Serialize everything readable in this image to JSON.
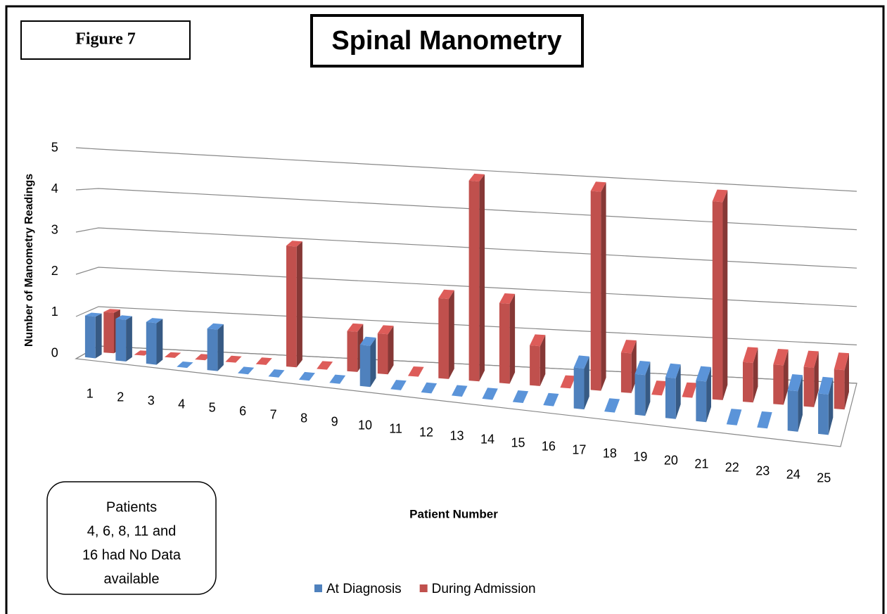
{
  "chart_data": {
    "type": "bar3d",
    "figure_label": "Figure 7",
    "title": "Spinal Manometry",
    "x_label": "Patient Number",
    "y_label": "Number of Manometry Readings",
    "note": [
      "Patients",
      "4, 6, 8, 11 and",
      "16 had No Data",
      "available"
    ],
    "categories": [
      "1",
      "2",
      "3",
      "4",
      "5",
      "6",
      "7",
      "8",
      "9",
      "10",
      "11",
      "12",
      "13",
      "14",
      "15",
      "16",
      "17",
      "18",
      "19",
      "20",
      "21",
      "22",
      "23",
      "24",
      "25"
    ],
    "series": [
      {
        "name": "At Diagnosis",
        "color": "#4f81bd",
        "values": [
          1,
          1,
          1,
          0,
          1,
          0,
          0,
          0,
          0,
          1,
          0,
          0,
          0,
          0,
          0,
          0,
          1,
          0,
          1,
          1,
          1,
          0,
          0,
          1,
          1
        ]
      },
      {
        "name": "During Admission",
        "color": "#c0504d",
        "values": [
          1,
          0,
          0,
          0,
          0,
          0,
          3,
          0,
          1,
          1,
          0,
          2,
          5,
          2,
          1,
          0,
          5,
          1,
          0,
          0,
          5,
          1,
          1,
          1,
          1
        ]
      }
    ],
    "ylim": [
      0,
      5
    ],
    "yticks": [
      0,
      1,
      2,
      3,
      4,
      5
    ],
    "grid": true,
    "legend": "bottom"
  }
}
